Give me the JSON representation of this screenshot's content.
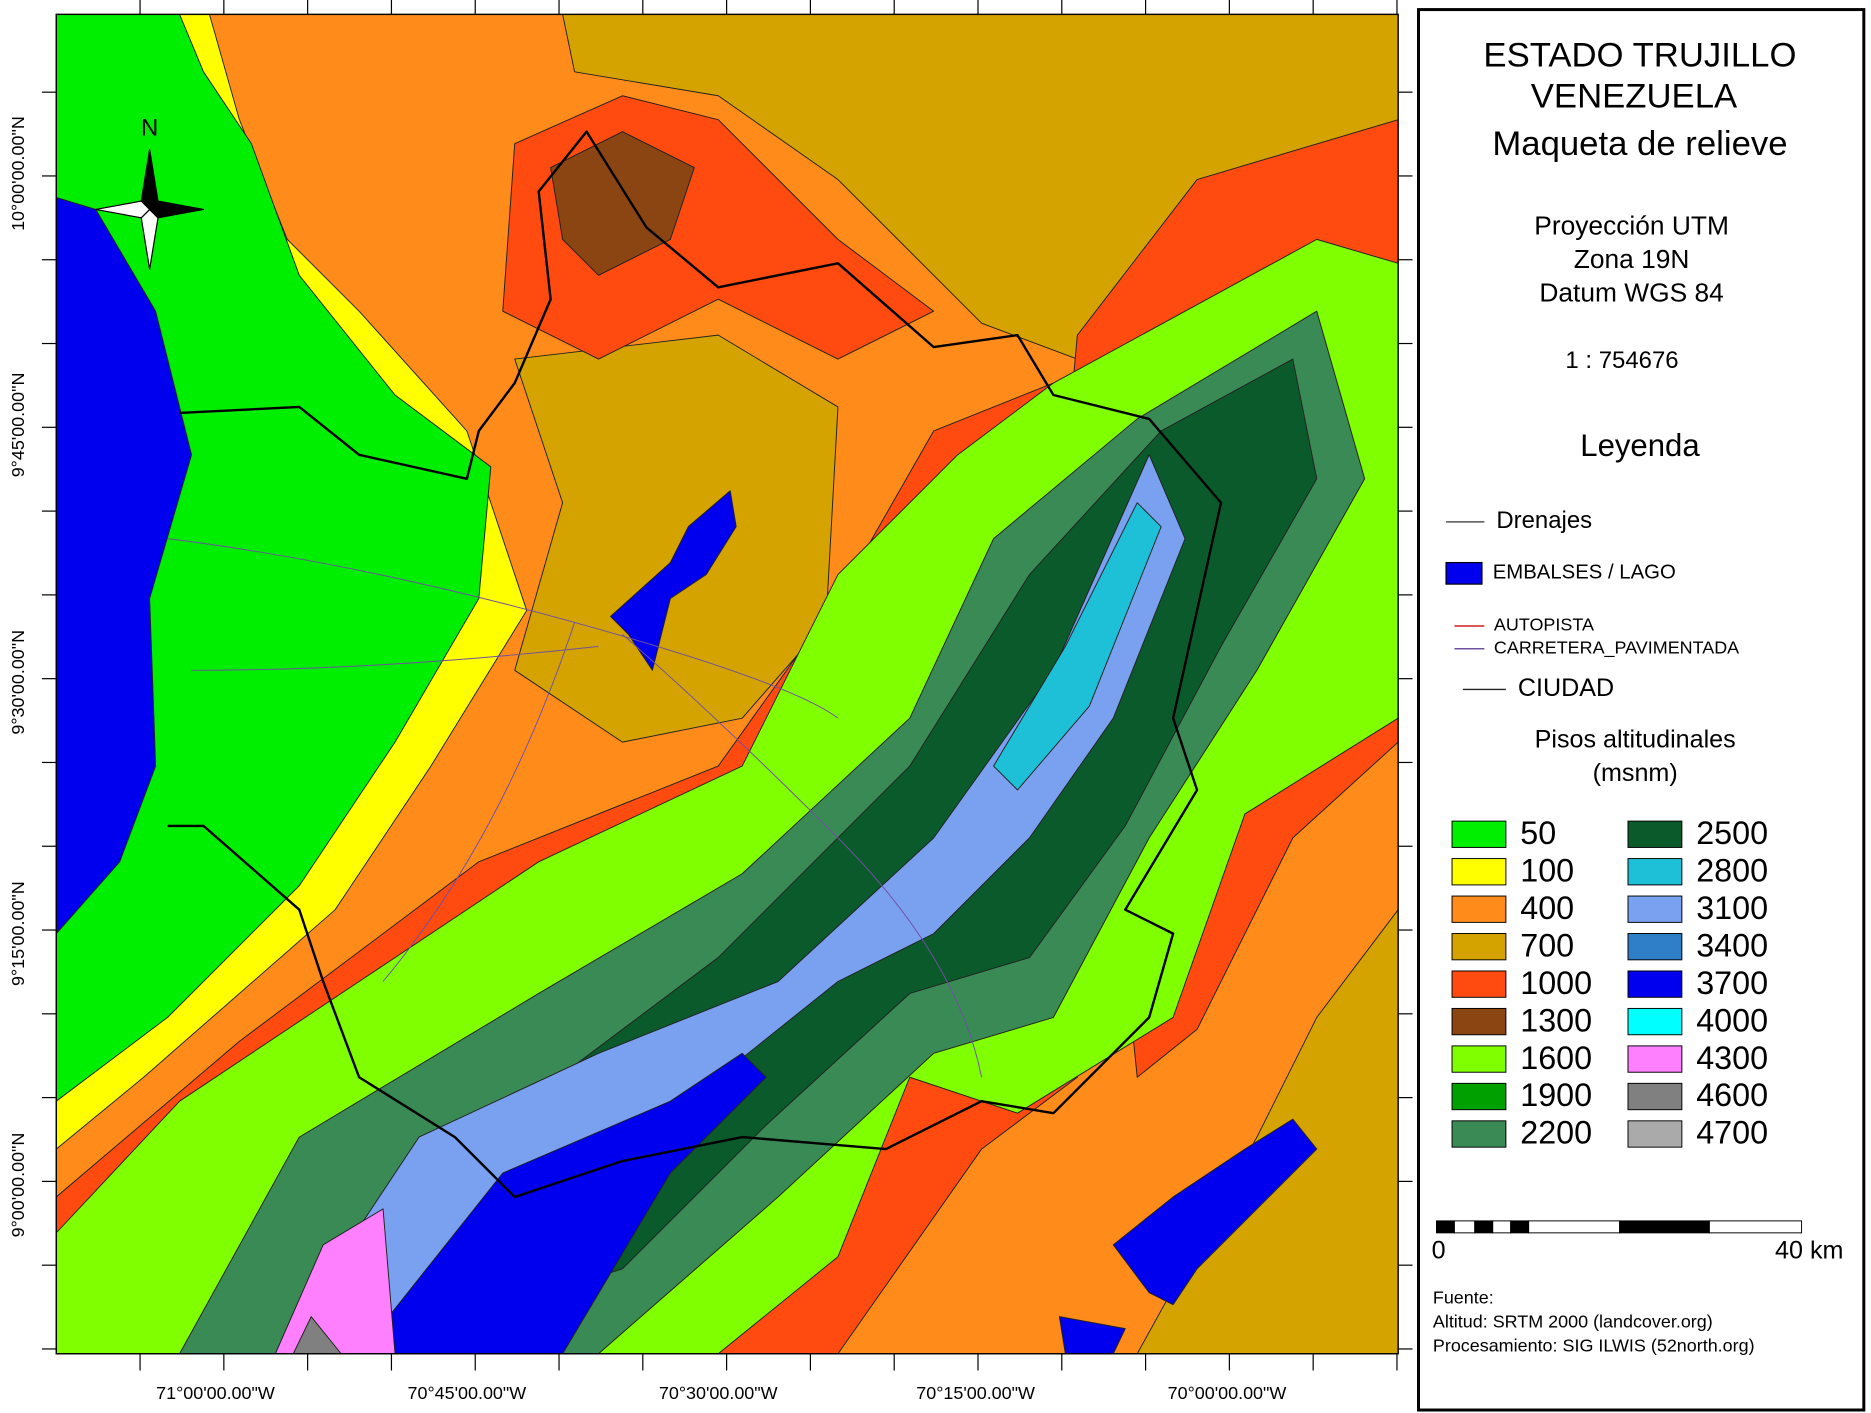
{
  "title": [
    "ESTADO TRUJILLO",
    "VENEZUELA",
    "Maqueta de relieve"
  ],
  "projection": [
    "Proyección UTM",
    "Zona 19N",
    "Datum WGS 84"
  ],
  "scale_ratio": "1 : 754676",
  "legend": {
    "title": "Leyenda",
    "items": [
      {
        "label": "Drenajes",
        "symbol": "line",
        "color": "#555555"
      },
      {
        "label": "EMBALSES / LAGO",
        "symbol": "box",
        "color": "#0000ee"
      },
      {
        "label": "AUTOPISTA",
        "symbol": "line",
        "color": "#d02020"
      },
      {
        "label": "CARRETERA_PAVIMENTADA",
        "symbol": "line",
        "color": "#7050a0"
      },
      {
        "label": "CIUDAD",
        "symbol": "line",
        "color": "#222222"
      }
    ],
    "classes_title": [
      "Pisos altitudinales",
      "(msnm)"
    ],
    "classes": [
      {
        "label": "50",
        "color": "#00ee00"
      },
      {
        "label": "100",
        "color": "#ffff00"
      },
      {
        "label": "400",
        "color": "#ff8c1a"
      },
      {
        "label": "700",
        "color": "#d4a300"
      },
      {
        "label": "1000",
        "color": "#ff4a10"
      },
      {
        "label": "1300",
        "color": "#8b4513"
      },
      {
        "label": "1600",
        "color": "#80ff00"
      },
      {
        "label": "1900",
        "color": "#00a000"
      },
      {
        "label": "2200",
        "color": "#3a8a55"
      },
      {
        "label": "2500",
        "color": "#0b5a2c"
      },
      {
        "label": "2800",
        "color": "#1ec0d8"
      },
      {
        "label": "3100",
        "color": "#7aa0f0"
      },
      {
        "label": "3400",
        "color": "#2f7fc8"
      },
      {
        "label": "3700",
        "color": "#0000ee"
      },
      {
        "label": "4000",
        "color": "#00ffff"
      },
      {
        "label": "4300",
        "color": "#ff80ff"
      },
      {
        "label": "4600",
        "color": "#808080"
      },
      {
        "label": "4700",
        "color": "#aaaaaa"
      }
    ]
  },
  "scale_bar": {
    "start": "0",
    "end": "40 km"
  },
  "source": [
    "Fuente:",
    "Altitud: SRTM 2000 (landcover.org)",
    "Procesamiento: SIG ILWIS (52north.org)"
  ],
  "north": "N",
  "lat_labels": [
    "10°00'00.00\"N",
    "9°45'00.00\"N",
    "9°30'00.00\"N",
    "9°15'00.00\"N",
    "9°00'00.00\"N"
  ],
  "lon_labels": [
    "71°00'00.00\"W",
    "70°45'00.00\"W",
    "70°30'00.00\"W",
    "70°15'00.00\"W",
    "70°00'00.00\"W"
  ]
}
